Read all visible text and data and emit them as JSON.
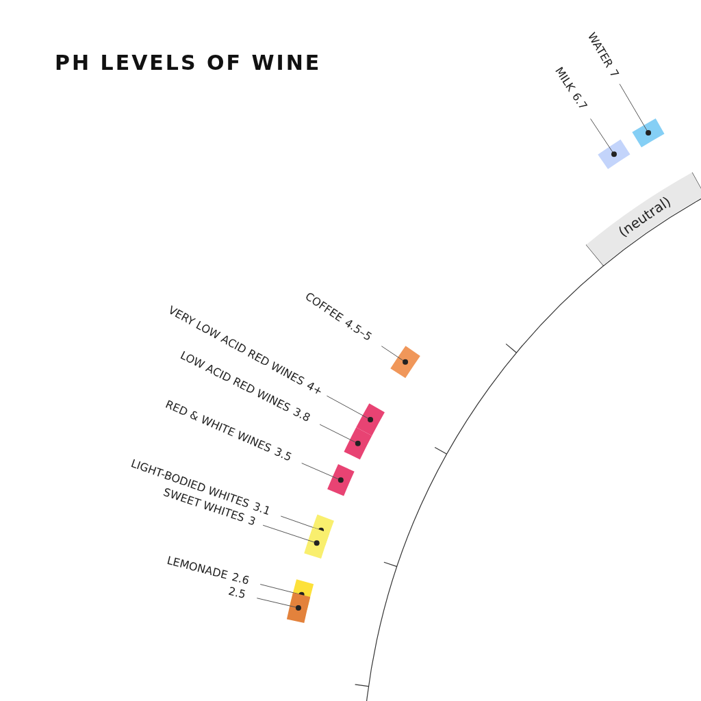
{
  "chart_data": {
    "type": "other",
    "title": "PH LEVELS OF WINE",
    "categories": [
      "WATER",
      "MILK",
      "COFFEE",
      "VERY LOW ACID RED WINES",
      "LOW ACID RED WINES",
      "RED & WHITE WINES",
      "LIGHT-BODIED WHITES",
      "SWEET WHITES",
      "LEMONADE",
      null
    ],
    "values": [
      7,
      6.7,
      4.5,
      4,
      3.8,
      3.5,
      3.1,
      3,
      2.6,
      2.5
    ],
    "value_labels": [
      "7",
      "6.7",
      "4.5–5",
      "4+",
      "3.8",
      "3.5",
      "3.1",
      "3",
      "2.6",
      "2.5"
    ],
    "colors": [
      "#85cff5",
      "#c3d4fb",
      "#f0975a",
      "#e84373",
      "#e84373",
      "#e84373",
      "#f9ef6e",
      "#f9ef6e",
      "#fde13a",
      "#e3823c"
    ],
    "annotations": [
      "(neutral)"
    ]
  }
}
